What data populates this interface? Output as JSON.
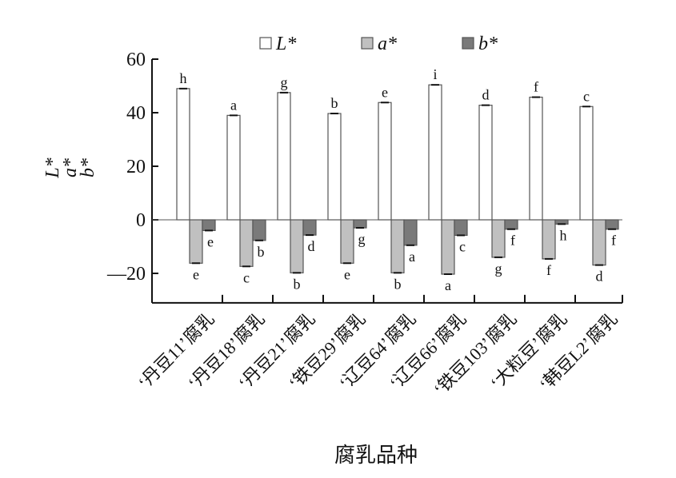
{
  "chart_data": {
    "type": "bar",
    "xlabel": "腐乳品种",
    "ylabel_lines": [
      "L*",
      "a*",
      "b*"
    ],
    "ylim": [
      -31,
      60
    ],
    "yticks": [
      60,
      40,
      20,
      0,
      -20
    ],
    "ytick_labels": [
      "60",
      "40",
      "20",
      "0",
      "—20"
    ],
    "grid": false,
    "legend_position": "top",
    "categories": [
      "‘丹豆11’腐乳",
      "‘丹豆18’腐乳",
      "‘丹豆21’腐乳",
      "‘铁豆29’腐乳",
      "‘辽豆64’腐乳",
      "‘辽豆66’腐乳",
      "‘铁豆103’腐乳",
      "‘大粒豆’腐乳",
      "‘韩豆L2’腐乳"
    ],
    "series": [
      {
        "name": "L*",
        "color": "#ffffff",
        "values": [
          49.0,
          39.0,
          47.5,
          39.7,
          43.8,
          50.4,
          42.8,
          45.8,
          42.3
        ],
        "labels": [
          "h",
          "a",
          "g",
          "b",
          "e",
          "i",
          "d",
          "f",
          "c"
        ]
      },
      {
        "name": "a*",
        "color": "#c0c0c0",
        "values": [
          -16.2,
          -17.4,
          -19.8,
          -16.2,
          -19.8,
          -20.3,
          -14.0,
          -14.6,
          -16.9
        ],
        "labels": [
          "e",
          "c",
          "b",
          "e",
          "b",
          "a",
          "g",
          "f",
          "d"
        ]
      },
      {
        "name": "b*",
        "color": "#7a7a7a",
        "values": [
          -4.0,
          -7.7,
          -5.7,
          -3.0,
          -9.5,
          -5.8,
          -3.5,
          -1.6,
          -3.5
        ],
        "labels": [
          "e",
          "b",
          "d",
          "g",
          "a",
          "c",
          "f",
          "h",
          "f"
        ]
      }
    ]
  }
}
